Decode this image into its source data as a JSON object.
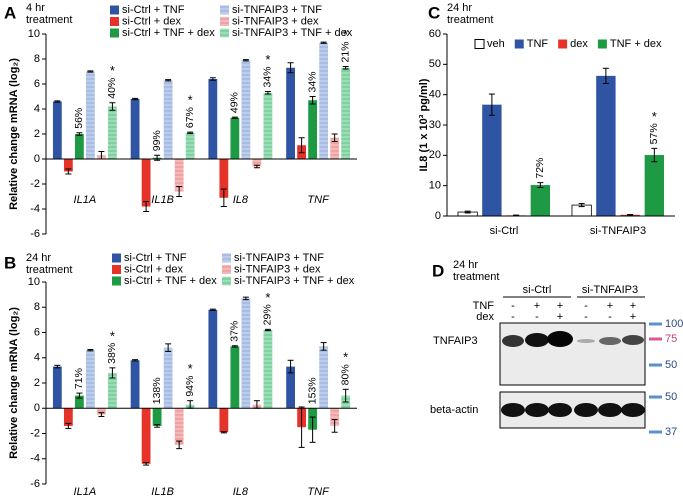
{
  "chart_data": [
    {
      "type": "bar",
      "panel": "A",
      "subtitle": [
        "4 hr",
        "treatment"
      ],
      "y_label": "Relative change mRNA (log₂)",
      "categories": [
        "IL1A",
        "IL1B",
        "IL8",
        "TNF"
      ],
      "ylim": [
        -6,
        10
      ],
      "yticks": [
        -6,
        -4,
        -2,
        0,
        2,
        4,
        6,
        8,
        10
      ],
      "series": [
        {
          "name": "si-Ctrl + TNF",
          "color": "#2f54a3",
          "values": [
            4.6,
            4.8,
            6.4,
            7.3
          ],
          "errors": [
            0.05,
            0.05,
            0.1,
            0.4
          ]
        },
        {
          "name": "si-Ctrl + dex",
          "color": "#e5332a",
          "values": [
            -1.0,
            -3.8,
            -3.1,
            1.1
          ],
          "errors": [
            0.2,
            0.4,
            0.7,
            0.6
          ]
        },
        {
          "name": "si-Ctrl + TNF + dex",
          "color": "#1e9a45",
          "values": [
            2.0,
            0.1,
            3.3,
            4.7
          ],
          "errors": [
            0.1,
            0.2,
            0.05,
            0.3
          ],
          "labels": [
            "56%",
            "99%",
            "49%",
            "34%"
          ]
        },
        {
          "name": "si-TNFAIP3 + TNF",
          "color": "#a8bde3",
          "hatch": true,
          "values": [
            7.0,
            6.3,
            7.9,
            9.3
          ],
          "errors": [
            0.05,
            0.05,
            0.05,
            0.05
          ]
        },
        {
          "name": "si-TNFAIP3 + dex",
          "color": "#f1a3a3",
          "hatch": true,
          "values": [
            0.3,
            -2.6,
            -0.6,
            1.7
          ],
          "errors": [
            0.3,
            0.4,
            0.1,
            0.3
          ]
        },
        {
          "name": "si-TNFAIP3 + TNF + dex",
          "color": "#7fd2a0",
          "hatch": true,
          "values": [
            4.2,
            2.1,
            5.3,
            7.3
          ],
          "errors": [
            0.3,
            0.05,
            0.1,
            0.1
          ],
          "labels": [
            "40%",
            "67%",
            "34%",
            "21%"
          ],
          "marks": [
            "*",
            "*",
            "*",
            "*"
          ]
        }
      ]
    },
    {
      "type": "bar",
      "panel": "B",
      "subtitle": [
        "24 hr",
        "treatment"
      ],
      "y_label": "Relative change mRNA (log₂)",
      "categories": [
        "IL1A",
        "IL1B",
        "IL8",
        "TNF"
      ],
      "ylim": [
        -6,
        10
      ],
      "yticks": [
        -6,
        -4,
        -2,
        0,
        2,
        4,
        6,
        8,
        10
      ],
      "series": [
        {
          "name": "si-Ctrl + TNF",
          "color": "#2f54a3",
          "values": [
            3.3,
            3.8,
            7.8,
            3.3
          ],
          "errors": [
            0.1,
            0.05,
            0.05,
            0.5
          ]
        },
        {
          "name": "si-Ctrl + dex",
          "color": "#e5332a",
          "values": [
            -1.4,
            -4.4,
            -1.9,
            -1.5
          ],
          "errors": [
            0.2,
            0.1,
            0.05,
            1.6
          ]
        },
        {
          "name": "si-Ctrl + TNF + dex",
          "color": "#1e9a45",
          "values": [
            1.0,
            -1.4,
            4.9,
            -1.7
          ],
          "errors": [
            0.2,
            0.1,
            0.05,
            1.0
          ],
          "labels": [
            "71%",
            "138%",
            "37%",
            "153%"
          ]
        },
        {
          "name": "si-TNFAIP3 + TNF",
          "color": "#a8bde3",
          "hatch": true,
          "values": [
            4.6,
            4.8,
            8.7,
            4.9
          ],
          "errors": [
            0.05,
            0.3,
            0.1,
            0.3
          ]
        },
        {
          "name": "si-TNFAIP3 + dex",
          "color": "#f1a3a3",
          "hatch": true,
          "values": [
            -0.5,
            -2.9,
            0.3,
            -1.4
          ],
          "errors": [
            0.15,
            0.3,
            0.3,
            0.5
          ]
        },
        {
          "name": "si-TNFAIP3 + TNF + dex",
          "color": "#7fd2a0",
          "hatch": true,
          "values": [
            2.8,
            0.3,
            6.2,
            1.0
          ],
          "errors": [
            0.4,
            0.3,
            0.05,
            0.5
          ],
          "labels": [
            "38%",
            "94%",
            "29%",
            "80%"
          ],
          "marks": [
            "*",
            "*",
            "*",
            "*"
          ]
        }
      ]
    },
    {
      "type": "bar",
      "panel": "C",
      "subtitle": [
        "24 hr",
        "treatment"
      ],
      "y_label": "IL8 (1 x 10³ pg/ml)",
      "categories": [
        "si-Ctrl",
        "si-TNFAIP3"
      ],
      "ylim": [
        0,
        60
      ],
      "yticks": [
        0,
        10,
        20,
        30,
        40,
        50,
        60
      ],
      "series": [
        {
          "name": "veh",
          "color": "#ffffff",
          "values": [
            1.3,
            3.6
          ],
          "errors": [
            0.3,
            0.5
          ]
        },
        {
          "name": "TNF",
          "color": "#2f54a3",
          "values": [
            36.7,
            46.2
          ],
          "errors": [
            3.5,
            2.5
          ]
        },
        {
          "name": "dex",
          "color": "#e5332a",
          "values": [
            0.2,
            0.4
          ],
          "errors": [
            0.1,
            0.1
          ]
        },
        {
          "name": "TNF + dex",
          "color": "#1e9a45",
          "values": [
            10.2,
            20.1
          ],
          "errors": [
            0.8,
            2.2
          ],
          "labels": [
            "72%",
            "57%"
          ],
          "marks": [
            null,
            "*"
          ]
        }
      ]
    }
  ],
  "blot": {
    "panel": "D",
    "subtitle": [
      "24 hr",
      "treatment"
    ],
    "groups": [
      "si-Ctrl",
      "si-TNFAIP3"
    ],
    "conditions": [
      {
        "name": "TNF",
        "lanes": [
          "-",
          "+",
          "+",
          "-",
          "+",
          "+"
        ]
      },
      {
        "name": "dex",
        "lanes": [
          "-",
          "-",
          "+",
          "-",
          "-",
          "+"
        ]
      }
    ],
    "bands": [
      "TNFAIP3",
      "beta-actin"
    ],
    "markers": [
      100,
      75,
      50,
      50,
      37
    ]
  }
}
